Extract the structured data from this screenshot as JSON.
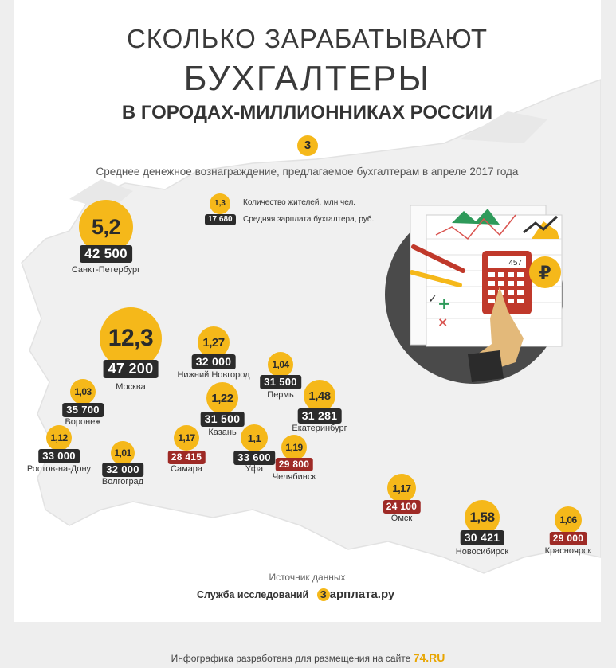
{
  "title": {
    "line1": "СКОЛЬКО ЗАРАБАТЫВАЮТ",
    "line2": "БУХГАЛТЕРЫ",
    "line3": "В ГОРОДАХ-МИЛЛИОННИКАХ РОССИИ"
  },
  "issue_number": "3",
  "subtitle": "Среднее денежное вознаграждение, предлагаемое бухгалтерам в апреле 2017 года",
  "legend": {
    "population_example": "1,3",
    "population_label": "Количество жителей, млн чел.",
    "salary_example": "17 680",
    "salary_label": "Средняя зарплата бухгалтера, руб."
  },
  "illustration": {
    "calculator_display": "457",
    "currency_symbol": "₽"
  },
  "colors": {
    "accent": "#f5b81a",
    "salary_box": "#2b2b2b",
    "salary_box_low": "#9e2a26",
    "map": "#ececec"
  },
  "cities": [
    {
      "name": "Санкт-Петербург",
      "population": "5,2",
      "salary": "42 500",
      "low": false
    },
    {
      "name": "Москва",
      "population": "12,3",
      "salary": "47 200",
      "low": false
    },
    {
      "name": "Нижний Новгород",
      "population": "1,27",
      "salary": "32 000",
      "low": false
    },
    {
      "name": "Пермь",
      "population": "1,04",
      "salary": "31 500",
      "low": false
    },
    {
      "name": "Воронеж",
      "population": "1,03",
      "salary": "35 700",
      "low": false
    },
    {
      "name": "Казань",
      "population": "1,22",
      "salary": "31 500",
      "low": false
    },
    {
      "name": "Екатеринбург",
      "population": "1,48",
      "salary": "31 281",
      "low": false
    },
    {
      "name": "Ростов-на-Дону",
      "population": "1,12",
      "salary": "33 000",
      "low": false
    },
    {
      "name": "Волгоград",
      "population": "1,01",
      "salary": "32 000",
      "low": false
    },
    {
      "name": "Самара",
      "population": "1,17",
      "salary": "28 415",
      "low": true
    },
    {
      "name": "Уфа",
      "population": "1,1",
      "salary": "33 600",
      "low": false
    },
    {
      "name": "Челябинск",
      "population": "1,19",
      "salary": "29 800",
      "low": true
    },
    {
      "name": "Омск",
      "population": "1,17",
      "salary": "24 100",
      "low": true
    },
    {
      "name": "Новосибирск",
      "population": "1,58",
      "salary": "30 421",
      "low": false
    },
    {
      "name": "Красноярск",
      "population": "1,06",
      "salary": "29 000",
      "low": true
    }
  ],
  "source": {
    "label": "Источник данных",
    "name": "Служба исследований",
    "logo_letter": "З",
    "logo_rest": "арплата.ру"
  },
  "footer": {
    "text": "Инфографика разработана для размещения на сайте",
    "brand_num": "74",
    "brand_dom": ".RU"
  }
}
